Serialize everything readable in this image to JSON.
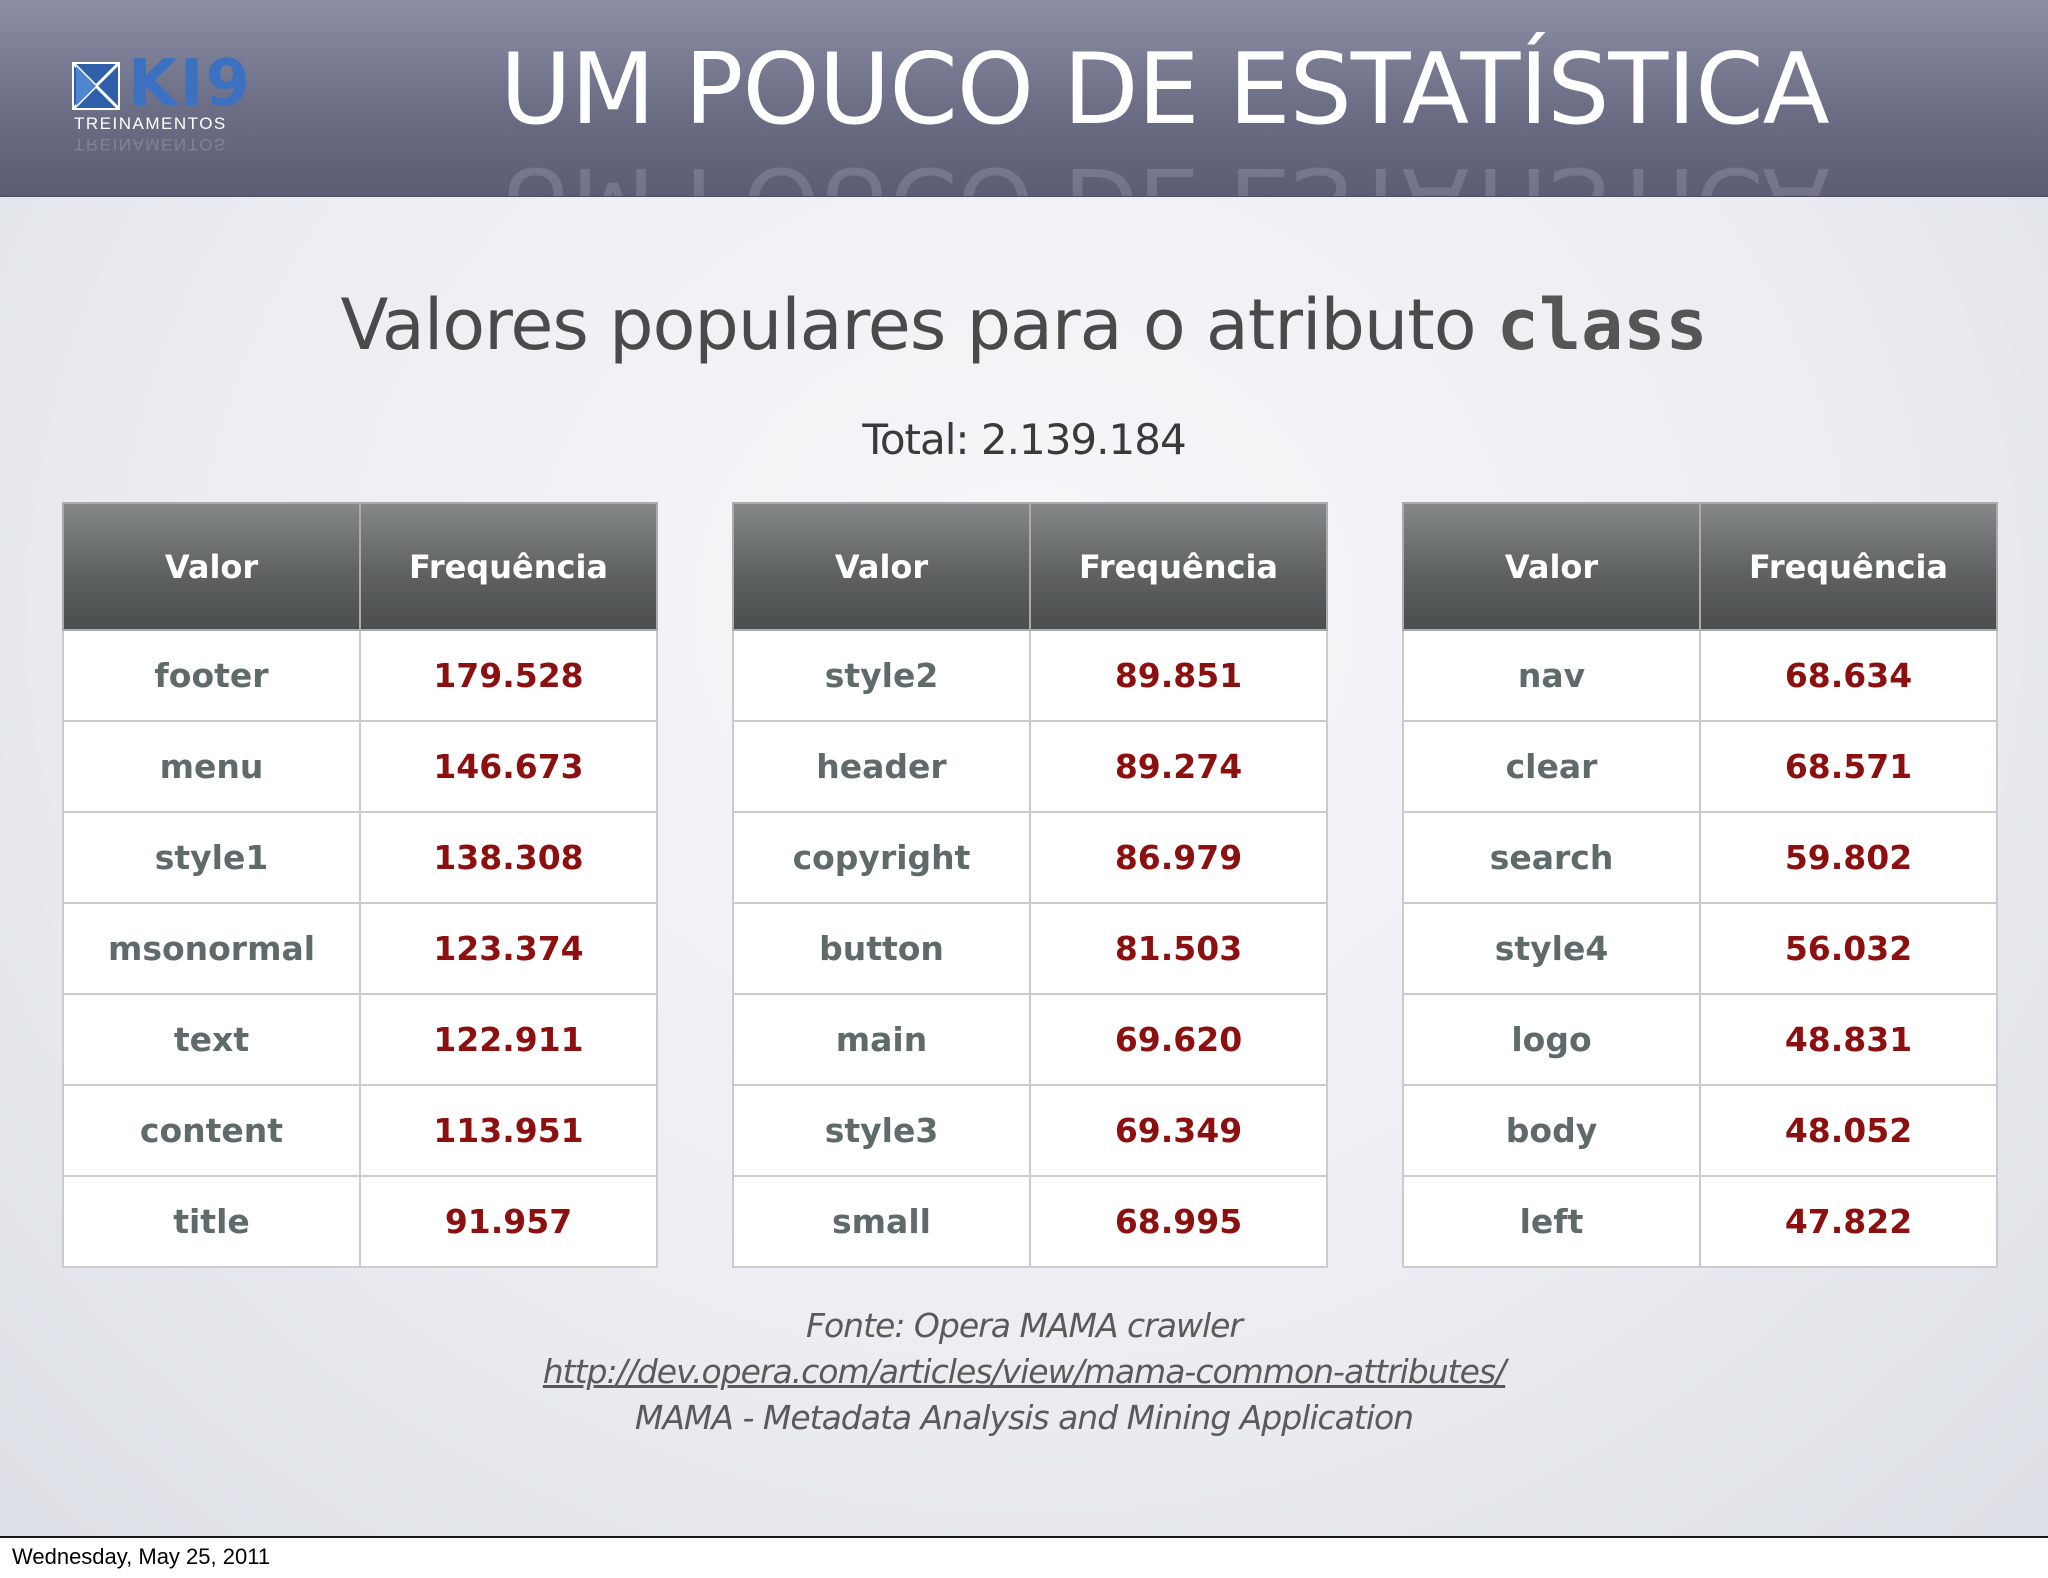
{
  "header": {
    "logo_text": "KI9",
    "logo_subtext": "TREINAMENTOS",
    "title": "UM POUCO DE ESTATÍSTICA"
  },
  "subtitle": {
    "text": "Valores populares para o atributo ",
    "code": "class"
  },
  "total": "Total: 2.139.184",
  "tables": [
    {
      "headers": [
        "Valor",
        "Frequência"
      ],
      "rows": [
        [
          "footer",
          "179.528"
        ],
        [
          "menu",
          "146.673"
        ],
        [
          "style1",
          "138.308"
        ],
        [
          "msonormal",
          "123.374"
        ],
        [
          "text",
          "122.911"
        ],
        [
          "content",
          "113.951"
        ],
        [
          "title",
          "91.957"
        ]
      ]
    },
    {
      "headers": [
        "Valor",
        "Frequência"
      ],
      "rows": [
        [
          "style2",
          "89.851"
        ],
        [
          "header",
          "89.274"
        ],
        [
          "copyright",
          "86.979"
        ],
        [
          "button",
          "81.503"
        ],
        [
          "main",
          "69.620"
        ],
        [
          "style3",
          "69.349"
        ],
        [
          "small",
          "68.995"
        ]
      ]
    },
    {
      "headers": [
        "Valor",
        "Frequência"
      ],
      "rows": [
        [
          "nav",
          "68.634"
        ],
        [
          "clear",
          "68.571"
        ],
        [
          "search",
          "59.802"
        ],
        [
          "style4",
          "56.032"
        ],
        [
          "logo",
          "48.831"
        ],
        [
          "body",
          "48.052"
        ],
        [
          "left",
          "47.822"
        ]
      ]
    }
  ],
  "source": {
    "line1": "Fonte: Opera MAMA crawler",
    "link": "http://dev.opera.com/articles/view/mama-common-attributes/",
    "line3": "MAMA - Metadata Analysis and Mining Application"
  },
  "footer": {
    "date": "Wednesday, May 25, 2011"
  }
}
